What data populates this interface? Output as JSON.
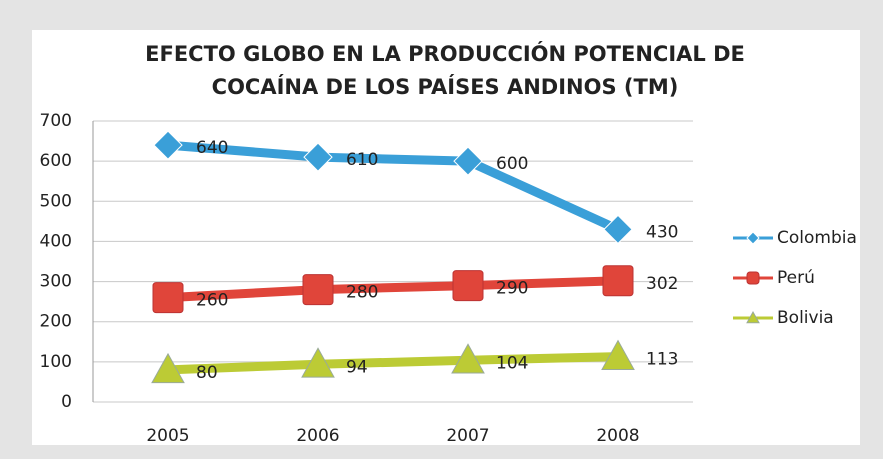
{
  "chart_data": {
    "type": "line",
    "title": [
      "EFECTO GLOBO EN LA PRODUCCIÓN POTENCIAL DE",
      "COCAÍNA DE LOS PAÍSES ANDINOS (TM)"
    ],
    "categories": [
      "2005",
      "2006",
      "2007",
      "2008"
    ],
    "series": [
      {
        "name": "Colombia",
        "color": "#3a9fd8",
        "marker": "diamond",
        "values": [
          640,
          610,
          600,
          430
        ]
      },
      {
        "name": "Perú",
        "color": "#e0453a",
        "marker": "square",
        "values": [
          260,
          280,
          290,
          302
        ]
      },
      {
        "name": "Bolivia",
        "color": "#bccb35",
        "marker": "triangle",
        "values": [
          80,
          94,
          104,
          113
        ]
      }
    ],
    "ylim": [
      0,
      700
    ],
    "yticks": [
      0,
      100,
      200,
      300,
      400,
      500,
      600,
      700
    ],
    "grid": true,
    "legend": "right"
  }
}
